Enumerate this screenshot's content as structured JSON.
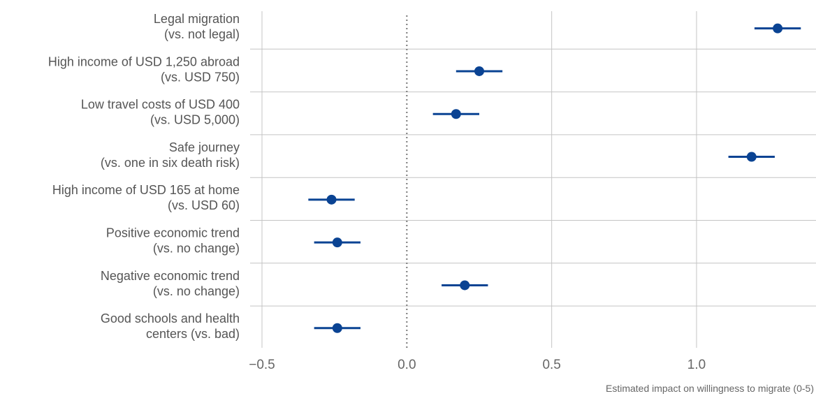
{
  "chart_data": {
    "type": "scatter",
    "subtype": "coefficient-plot",
    "categories": [
      [
        "Legal migration",
        "(vs. not legal)"
      ],
      [
        "High income of USD 1,250 abroad",
        "(vs. USD 750)"
      ],
      [
        "Low travel costs of USD 400",
        "(vs. USD 5,000)"
      ],
      [
        "Safe journey",
        "(vs. one in six death risk)"
      ],
      [
        "High income of USD 165 at home",
        "(vs. USD 60)"
      ],
      [
        "Positive economic trend",
        "(vs. no change)"
      ],
      [
        "Negative  economic trend",
        "(vs. no change)"
      ],
      [
        "Good schools and health",
        "centers (vs. bad)"
      ]
    ],
    "estimates": [
      1.28,
      0.25,
      0.17,
      1.19,
      -0.26,
      -0.24,
      0.2,
      -0.24
    ],
    "ci_low": [
      1.2,
      0.17,
      0.09,
      1.11,
      -0.34,
      -0.32,
      0.12,
      -0.32
    ],
    "ci_high": [
      1.36,
      0.33,
      0.25,
      1.27,
      -0.18,
      -0.16,
      0.28,
      -0.16
    ],
    "xlim": [
      -0.5,
      1.37
    ],
    "x_ticks": [
      -0.5,
      0.0,
      0.5,
      1.0
    ],
    "x_tick_labels": [
      "−0.5",
      "0.0",
      "0.5",
      "1.0"
    ],
    "reference_line": 0.0,
    "xlabel": "Estimated impact on willingness to migrate (0-5)",
    "ylabel": "",
    "title": "",
    "grid": true,
    "legend": "none",
    "colors": {
      "point": "#0a4393",
      "interval": "#0a4393",
      "grid": "#c4c4c4",
      "reference": "#777777",
      "category_text": "#555555",
      "tick_text": "#666666"
    }
  }
}
